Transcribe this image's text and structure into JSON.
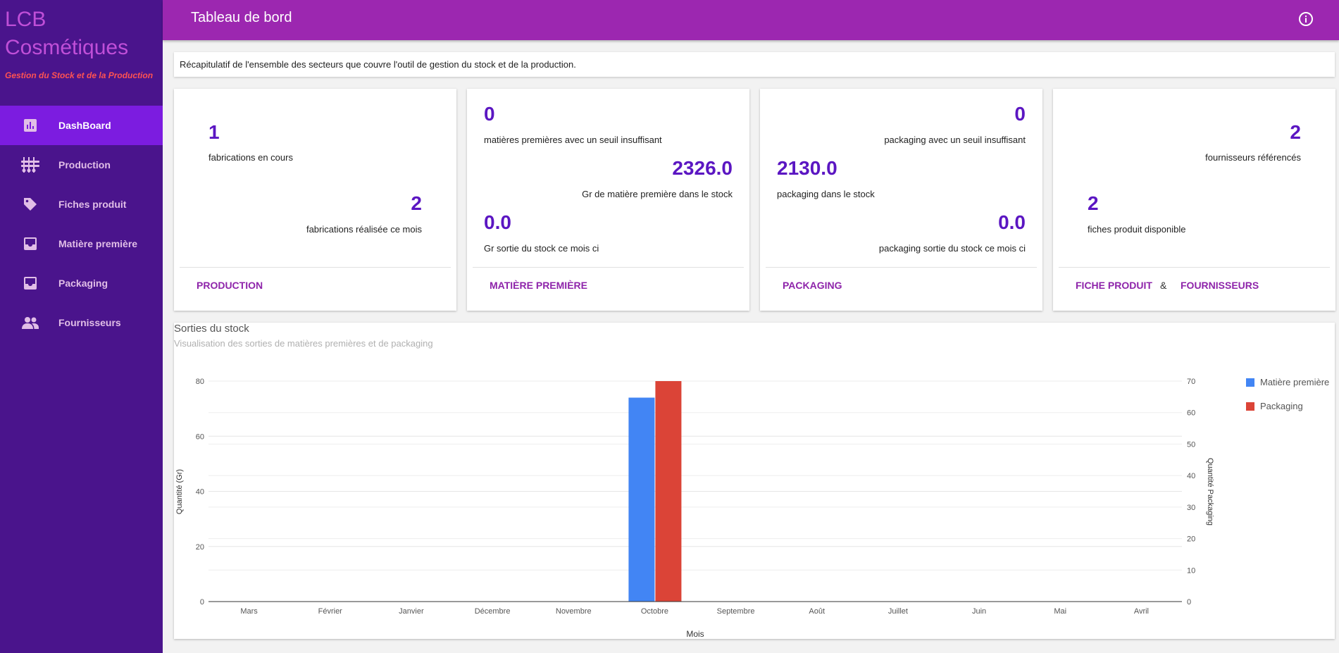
{
  "brand": {
    "line1": "LCB",
    "line2": "Cosmétiques",
    "tagline": "Gestion du Stock et de la Production"
  },
  "nav": [
    {
      "label": "DashBoard",
      "icon": "bar-chart-icon",
      "active": true
    },
    {
      "label": "Production",
      "icon": "production-icon",
      "active": false
    },
    {
      "label": "Fiches produit",
      "icon": "tag-icon",
      "active": false
    },
    {
      "label": "Matière première",
      "icon": "inbox-icon",
      "active": false
    },
    {
      "label": "Packaging",
      "icon": "inbox-icon",
      "active": false
    },
    {
      "label": "Fournisseurs",
      "icon": "people-icon",
      "active": false
    }
  ],
  "header": {
    "title": "Tableau de bord",
    "info_icon": "info-icon"
  },
  "summary": "Récapitulatif de l'ensemble des secteurs que couvre l'outil de gestion du stock et de la production.",
  "cards": {
    "production": {
      "in_progress_value": "1",
      "in_progress_label": "fabrications en cours",
      "done_value": "2",
      "done_label": "fabrications réalisée ce mois",
      "action": "Production"
    },
    "matiere": {
      "low_value": "0",
      "low_label": "matières premières avec un seuil insuffisant",
      "stock_value": "2326.0",
      "stock_label": "Gr de matière première dans le stock",
      "out_value": "0.0",
      "out_label": "Gr sortie du stock ce mois ci",
      "action": "Matière première"
    },
    "packaging": {
      "low_value": "0",
      "low_label": "packaging avec un seuil insuffisant",
      "stock_value": "2130.0",
      "stock_label": "packaging dans le stock",
      "out_value": "0.0",
      "out_label": "packaging sortie du stock ce mois ci",
      "action": "Packaging"
    },
    "fiches": {
      "suppliers_value": "2",
      "suppliers_label": "fournisseurs référencés",
      "products_value": "2",
      "products_label": "fiches produit disponible",
      "action1": "Fiche produit",
      "amp": "&",
      "action2": "Fournisseurs"
    }
  },
  "chart_panel": {
    "title": "Sorties du stock",
    "subtitle": "Visualisation des sorties de matières premières et de packaging"
  },
  "chart_data": {
    "type": "bar",
    "categories": [
      "Mars",
      "Février",
      "Janvier",
      "Décembre",
      "Novembre",
      "Octobre",
      "Septembre",
      "Août",
      "Juillet",
      "Juin",
      "Mai",
      "Avril"
    ],
    "series": [
      {
        "name": "Matière première",
        "axis": "left",
        "color": "#4285f4",
        "values": [
          0,
          0,
          0,
          0,
          0,
          74,
          0,
          0,
          0,
          0,
          0,
          0
        ]
      },
      {
        "name": "Packaging",
        "axis": "right",
        "color": "#db4437",
        "values": [
          0,
          0,
          0,
          0,
          0,
          70,
          0,
          0,
          0,
          0,
          0,
          0
        ]
      }
    ],
    "xlabel": "Mois",
    "ylabel_left": "Quantité (Gr)",
    "ylabel_right": "Quantité Packaging",
    "ylim_left": [
      0,
      80
    ],
    "yticks_left": [
      0,
      20,
      40,
      60,
      80
    ],
    "ylim_right": [
      0,
      70
    ],
    "yticks_right": [
      0,
      10,
      20,
      30,
      40,
      50,
      60,
      70
    ],
    "grid": true,
    "legend": "right"
  }
}
